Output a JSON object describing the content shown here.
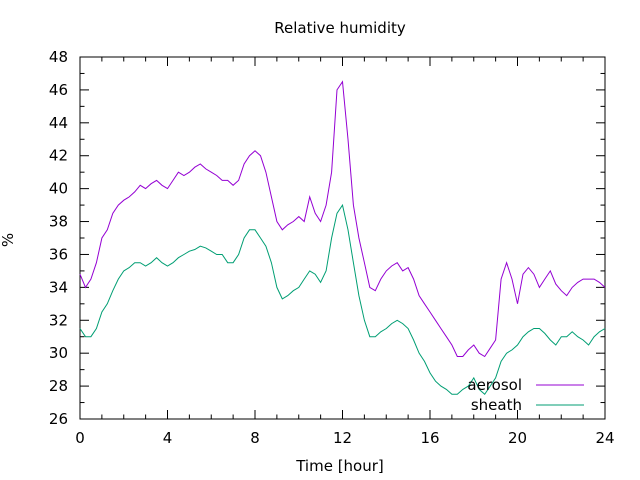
{
  "chart_data": {
    "type": "line",
    "title": "Relative humidity",
    "xlabel": "Time [hour]",
    "ylabel": "%",
    "xlim": [
      0,
      24
    ],
    "ylim": [
      26,
      48
    ],
    "x_ticks": [
      0,
      4,
      8,
      12,
      16,
      20,
      24
    ],
    "y_ticks": [
      26,
      28,
      30,
      32,
      34,
      36,
      38,
      40,
      42,
      44,
      46,
      48
    ],
    "x_minor_step": 1,
    "y_minor_step": 1,
    "grid": false,
    "legend": "bottom-right",
    "series": [
      {
        "name": "aerosol",
        "color": "#9400d3",
        "x": [
          0,
          0.25,
          0.5,
          0.75,
          1,
          1.25,
          1.5,
          1.75,
          2,
          2.25,
          2.5,
          2.75,
          3,
          3.25,
          3.5,
          3.75,
          4,
          4.25,
          4.5,
          4.75,
          5,
          5.25,
          5.5,
          5.75,
          6,
          6.25,
          6.5,
          6.75,
          7,
          7.25,
          7.5,
          7.75,
          8,
          8.25,
          8.5,
          8.75,
          9,
          9.25,
          9.5,
          9.75,
          10,
          10.25,
          10.5,
          10.75,
          11,
          11.25,
          11.5,
          11.75,
          12,
          12.25,
          12.5,
          12.75,
          13,
          13.25,
          13.5,
          13.75,
          14,
          14.25,
          14.5,
          14.75,
          15,
          15.25,
          15.5,
          15.75,
          16,
          16.25,
          16.5,
          16.75,
          17,
          17.25,
          17.5,
          17.75,
          18,
          18.25,
          18.5,
          18.75,
          19,
          19.25,
          19.5,
          19.75,
          20,
          20.25,
          20.5,
          20.75,
          21,
          21.25,
          21.5,
          21.75,
          22,
          22.25,
          22.5,
          22.75,
          23,
          23.25,
          23.5,
          23.75,
          24
        ],
        "y": [
          34.8,
          34.0,
          34.5,
          35.5,
          37.0,
          37.5,
          38.5,
          39.0,
          39.3,
          39.5,
          39.8,
          40.2,
          40.0,
          40.3,
          40.5,
          40.2,
          40.0,
          40.5,
          41.0,
          40.8,
          41.0,
          41.3,
          41.5,
          41.2,
          41.0,
          40.8,
          40.5,
          40.5,
          40.2,
          40.5,
          41.5,
          42.0,
          42.3,
          42.0,
          41.0,
          39.5,
          38.0,
          37.5,
          37.8,
          38.0,
          38.3,
          38.0,
          39.5,
          38.5,
          38.0,
          39.0,
          41.0,
          46.0,
          46.5,
          43.0,
          39.0,
          37.0,
          35.5,
          34.0,
          33.8,
          34.5,
          35.0,
          35.3,
          35.5,
          35.0,
          35.2,
          34.5,
          33.5,
          33.0,
          32.5,
          32.0,
          31.5,
          31.0,
          30.5,
          29.8,
          29.8,
          30.2,
          30.5,
          30.0,
          29.8,
          30.3,
          30.8,
          34.5,
          35.5,
          34.5,
          33.0,
          34.8,
          35.2,
          34.8,
          34.0,
          34.5,
          35.0,
          34.2,
          33.8,
          33.5,
          34.0,
          34.3,
          34.5,
          34.5,
          34.5,
          34.3,
          34.0
        ]
      },
      {
        "name": "sheath",
        "color": "#009e73",
        "x": [
          0,
          0.25,
          0.5,
          0.75,
          1,
          1.25,
          1.5,
          1.75,
          2,
          2.25,
          2.5,
          2.75,
          3,
          3.25,
          3.5,
          3.75,
          4,
          4.25,
          4.5,
          4.75,
          5,
          5.25,
          5.5,
          5.75,
          6,
          6.25,
          6.5,
          6.75,
          7,
          7.25,
          7.5,
          7.75,
          8,
          8.25,
          8.5,
          8.75,
          9,
          9.25,
          9.5,
          9.75,
          10,
          10.25,
          10.5,
          10.75,
          11,
          11.25,
          11.5,
          11.75,
          12,
          12.25,
          12.5,
          12.75,
          13,
          13.25,
          13.5,
          13.75,
          14,
          14.25,
          14.5,
          14.75,
          15,
          15.25,
          15.5,
          15.75,
          16,
          16.25,
          16.5,
          16.75,
          17,
          17.25,
          17.5,
          17.75,
          18,
          18.25,
          18.5,
          18.75,
          19,
          19.25,
          19.5,
          19.75,
          20,
          20.25,
          20.5,
          20.75,
          21,
          21.25,
          21.5,
          21.75,
          22,
          22.25,
          22.5,
          22.75,
          23,
          23.25,
          23.5,
          23.75,
          24
        ],
        "y": [
          31.5,
          31.0,
          31.0,
          31.5,
          32.5,
          33.0,
          33.8,
          34.5,
          35.0,
          35.2,
          35.5,
          35.5,
          35.3,
          35.5,
          35.8,
          35.5,
          35.3,
          35.5,
          35.8,
          36.0,
          36.2,
          36.3,
          36.5,
          36.4,
          36.2,
          36.0,
          36.0,
          35.5,
          35.5,
          36.0,
          37.0,
          37.5,
          37.5,
          37.0,
          36.5,
          35.5,
          34.0,
          33.3,
          33.5,
          33.8,
          34.0,
          34.5,
          35.0,
          34.8,
          34.3,
          35.0,
          37.0,
          38.5,
          39.0,
          37.5,
          35.5,
          33.5,
          32.0,
          31.0,
          31.0,
          31.3,
          31.5,
          31.8,
          32.0,
          31.8,
          31.5,
          30.8,
          30.0,
          29.5,
          28.8,
          28.3,
          28.0,
          27.8,
          27.5,
          27.5,
          27.8,
          28.0,
          28.5,
          27.8,
          27.5,
          28.0,
          28.5,
          29.5,
          30.0,
          30.2,
          30.5,
          31.0,
          31.3,
          31.5,
          31.5,
          31.2,
          30.8,
          30.5,
          31.0,
          31.0,
          31.3,
          31.0,
          30.8,
          30.5,
          31.0,
          31.3,
          31.5
        ]
      }
    ]
  }
}
